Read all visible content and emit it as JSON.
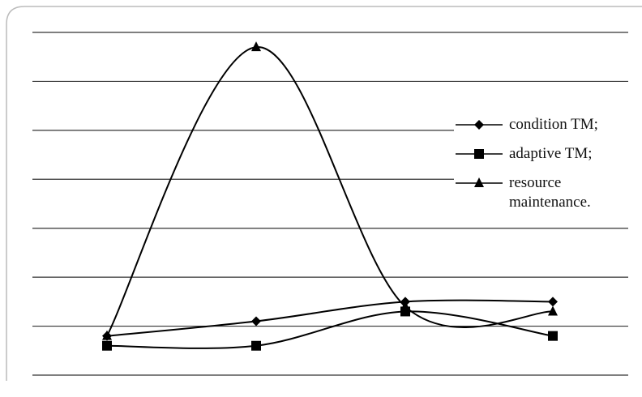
{
  "chart_data": {
    "type": "line",
    "categories": [
      null,
      null,
      null,
      null
    ],
    "series": [
      {
        "name": "condition TM;",
        "color": "#000000",
        "marker": "diamond",
        "values": [
          0.8,
          1.1,
          1.5,
          1.5
        ]
      },
      {
        "name": "adaptive TM;",
        "color": "#000000",
        "marker": "square",
        "values": [
          0.6,
          0.6,
          1.3,
          0.8
        ]
      },
      {
        "name": "resource maintenance.",
        "color": "#000000",
        "marker": "triangle",
        "values": [
          0.8,
          6.7,
          1.4,
          1.3
        ]
      }
    ],
    "ylim": [
      0,
      7
    ],
    "yticks": [
      0,
      1,
      2,
      3,
      4,
      5,
      6,
      7
    ],
    "grid": true
  }
}
